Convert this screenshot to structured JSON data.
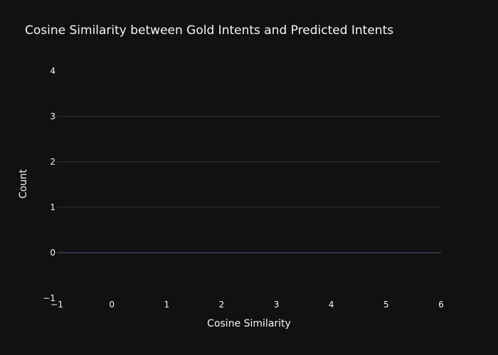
{
  "chart_data": {
    "type": "bar",
    "title": "Cosine Similarity between Gold Intents and Predicted Intents",
    "xlabel": "Cosine Similarity",
    "ylabel": "Count",
    "xlim": [
      -1,
      6
    ],
    "ylim": [
      -1,
      4
    ],
    "x_ticks": [
      -1,
      0,
      1,
      2,
      3,
      4,
      5,
      6
    ],
    "y_ticks": [
      -1,
      0,
      1,
      2,
      3,
      4
    ],
    "x_tick_labels": [
      "−1",
      "0",
      "1",
      "2",
      "3",
      "4",
      "5",
      "6"
    ],
    "y_tick_labels": [
      "−1",
      "0",
      "1",
      "2",
      "3",
      "4"
    ],
    "series": [],
    "grid": true,
    "legend": "none"
  },
  "colors": {
    "background": "#111111",
    "grid": "#283442",
    "zeroline": "#283442",
    "text": "#f2f5fa"
  }
}
